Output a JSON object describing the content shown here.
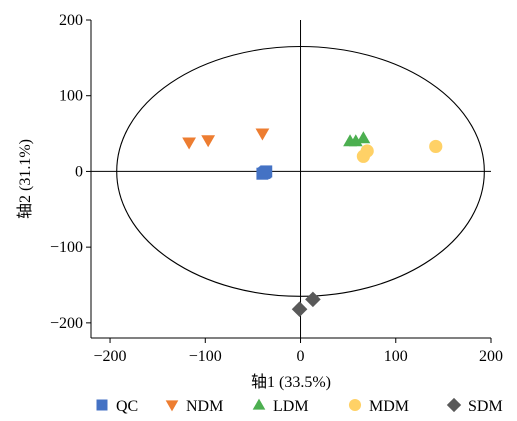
{
  "chart_data": {
    "type": "scatter",
    "xlabel": "轴1 (33.5%)",
    "ylabel": "轴2 (31.1%)",
    "xlim": [
      -220,
      200
    ],
    "ylim": [
      -220,
      200
    ],
    "x_ticks": [
      -200,
      -100,
      0,
      100,
      200
    ],
    "y_ticks": [
      -200,
      -100,
      0,
      100,
      200
    ],
    "x_tick_labels": [
      "−200",
      "−100",
      "0",
      "100",
      "200"
    ],
    "y_tick_labels": [
      "−200",
      "−100",
      "0",
      "100",
      "200"
    ],
    "reference_lines": {
      "x": 0,
      "y": 0
    },
    "confidence_ellipse": {
      "center": [
        0,
        0
      ],
      "x_radius": 193,
      "y_radius": 165
    },
    "grid": false,
    "legend_position": "bottom",
    "series": [
      {
        "name": "QC",
        "marker": "square",
        "color": "#4472C4",
        "points": [
          {
            "x": -40,
            "y": -3
          },
          {
            "x": -37,
            "y": -1
          },
          {
            "x": -36,
            "y": 0
          },
          {
            "x": -38,
            "y": -2
          }
        ]
      },
      {
        "name": "NDM",
        "marker": "triangle-down",
        "color": "#ED7D31",
        "points": [
          {
            "x": -117,
            "y": 38
          },
          {
            "x": -97,
            "y": 41
          },
          {
            "x": -40,
            "y": 50
          }
        ]
      },
      {
        "name": "LDM",
        "marker": "triangle-up",
        "color": "#4CAF50",
        "points": [
          {
            "x": 52,
            "y": 40
          },
          {
            "x": 58,
            "y": 40
          },
          {
            "x": 66,
            "y": 44
          }
        ]
      },
      {
        "name": "MDM",
        "marker": "circle",
        "color": "#FFD166",
        "points": [
          {
            "x": 66,
            "y": 20
          },
          {
            "x": 70,
            "y": 27
          },
          {
            "x": 142,
            "y": 33
          }
        ]
      },
      {
        "name": "SDM",
        "marker": "diamond",
        "color": "#595959",
        "points": [
          {
            "x": -1,
            "y": -182
          },
          {
            "x": 13,
            "y": -169
          }
        ]
      }
    ]
  }
}
